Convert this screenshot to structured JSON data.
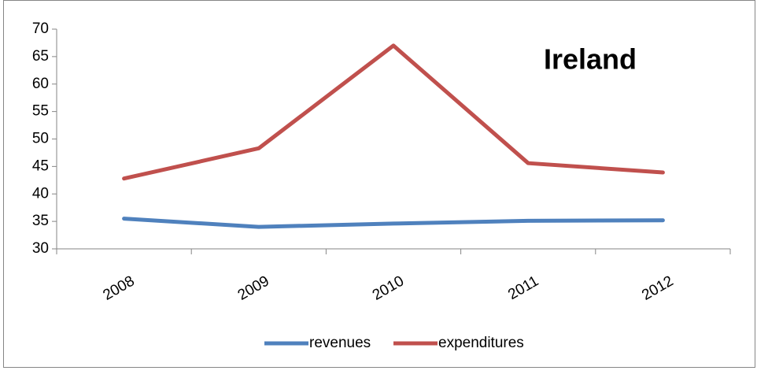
{
  "chart_data": {
    "type": "line",
    "title": "Ireland",
    "categories": [
      "2008",
      "2009",
      "2010",
      "2011",
      "2012"
    ],
    "series": [
      {
        "name": "revenues",
        "color": "#4f81bd",
        "values": [
          35.5,
          34.0,
          34.6,
          35.1,
          35.2
        ]
      },
      {
        "name": "expenditures",
        "color": "#c0504d",
        "values": [
          42.8,
          48.3,
          67.0,
          45.6,
          43.9
        ]
      }
    ],
    "ylim": [
      30,
      70
    ],
    "yticks": [
      30,
      35,
      40,
      45,
      50,
      55,
      60,
      65,
      70
    ],
    "grid": false,
    "legend": "bottom"
  }
}
